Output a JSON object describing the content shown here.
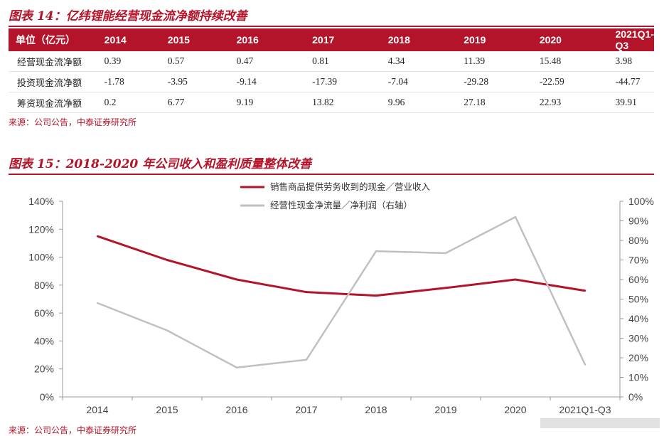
{
  "fig14": {
    "title": "图表 14：亿纬锂能经营现金流净额持续改善",
    "source": "来源：公司公告，中泰证券研究所"
  },
  "table": {
    "headers": [
      "单位（亿元）",
      "2014",
      "2015",
      "2016",
      "2017",
      "2018",
      "2019",
      "2020",
      "2021Q1-Q3"
    ],
    "rows": [
      [
        "经营现金流净额",
        "0.39",
        "0.57",
        "0.47",
        "0.81",
        "4.34",
        "11.39",
        "15.48",
        "3.98"
      ],
      [
        "投资现金流净额",
        "-1.78",
        "-3.95",
        "-9.14",
        "-17.39",
        "-7.04",
        "-29.28",
        "-22.59",
        "-44.77"
      ],
      [
        "筹资现金流净额",
        "0.2",
        "6.77",
        "9.19",
        "13.82",
        "9.96",
        "27.18",
        "22.93",
        "39.91"
      ]
    ],
    "header_color": "#b4142a"
  },
  "fig15": {
    "title": "图表 15：2018-2020 年公司收入和盈利质量整体改善",
    "source": "来源：公司公告，中泰证券研究所"
  },
  "chart_data": {
    "type": "line",
    "categories": [
      "2014",
      "2015",
      "2016",
      "2017",
      "2018",
      "2019",
      "2020",
      "2021Q1-Q3"
    ],
    "series": [
      {
        "name": "销售商品提供劳务收到的现金／营业收入",
        "axis": "left",
        "color": "#b4142a",
        "values": [
          115,
          98,
          84,
          75,
          72.5,
          78,
          84,
          76
        ]
      },
      {
        "name": "经营性现金净流量／净利润（右轴）",
        "axis": "right",
        "color": "#c0c0c0",
        "values": [
          48,
          34,
          15,
          19,
          74.5,
          73.5,
          92,
          16.5
        ]
      }
    ],
    "y_left": {
      "ylim": [
        0,
        140
      ],
      "ticks": [
        "0%",
        "20%",
        "40%",
        "60%",
        "80%",
        "100%",
        "120%",
        "140%"
      ]
    },
    "y_right": {
      "ylim": [
        0,
        100
      ],
      "ticks": [
        "0%",
        "10%",
        "20%",
        "30%",
        "40%",
        "50%",
        "60%",
        "70%",
        "80%",
        "90%",
        "100%"
      ]
    },
    "grid": false,
    "legend_placement": "top-center"
  }
}
